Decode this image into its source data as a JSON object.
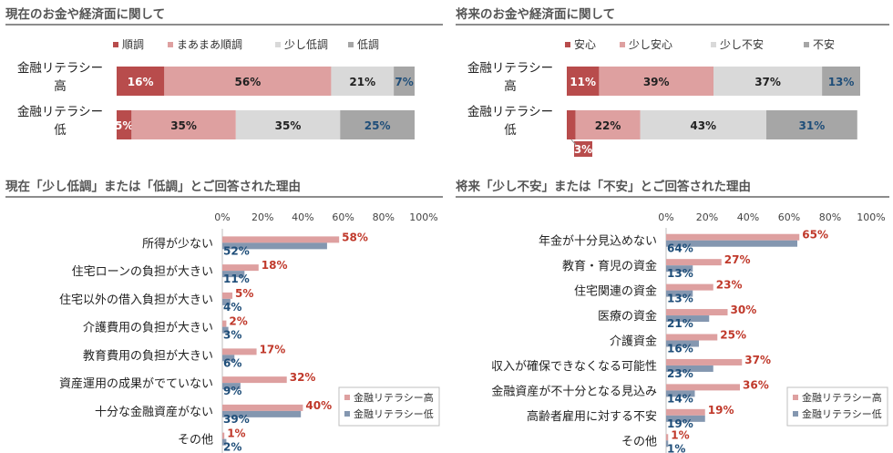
{
  "colors": {
    "dark_red": "#b84c4c",
    "pink": "#dea0a0",
    "light_gray": "#d9d9d9",
    "dark_gray": "#a6a6a6",
    "blue_gray": "#8497b0",
    "red_text": "#c0392b",
    "blue_text": "#1f4e79"
  },
  "chart_data": [
    {
      "type": "bar",
      "stacked": true,
      "orientation": "horizontal",
      "title": "現在のお金や経済面に関して",
      "categories": [
        "金融リテラシー高",
        "金融リテラシー低"
      ],
      "series": [
        {
          "name": "順調",
          "values": [
            16,
            5
          ]
        },
        {
          "name": "まあまあ順調",
          "values": [
            56,
            35
          ]
        },
        {
          "name": "少し低調",
          "values": [
            21,
            35
          ]
        },
        {
          "name": "低調",
          "values": [
            7,
            25
          ]
        }
      ],
      "legend": "top"
    },
    {
      "type": "bar",
      "stacked": true,
      "orientation": "horizontal",
      "title": "将来のお金や経済面に関して",
      "categories": [
        "金融リテラシー高",
        "金融リテラシー低"
      ],
      "series": [
        {
          "name": "安心",
          "values": [
            11,
            3
          ]
        },
        {
          "name": "少し安心",
          "values": [
            39,
            22
          ]
        },
        {
          "name": "少し不安",
          "values": [
            37,
            43
          ]
        },
        {
          "name": "不安",
          "values": [
            13,
            31
          ]
        }
      ],
      "legend": "top"
    },
    {
      "type": "bar",
      "orientation": "horizontal",
      "title": "現在「少し低調」または「低調」とご回答された理由",
      "categories": [
        "所得が少ない",
        "住宅ローンの負担が大きい",
        "住宅以外の借入負担が大きい",
        "介護費用の負担が大きい",
        "教育費用の負担が大きい",
        "資産運用の成果がでていない",
        "十分な金融資産がない",
        "その他"
      ],
      "series": [
        {
          "name": "金融リテラシー高",
          "values": [
            58,
            18,
            5,
            2,
            17,
            32,
            40,
            1
          ]
        },
        {
          "name": "金融リテラシー低",
          "values": [
            52,
            11,
            4,
            3,
            6,
            9,
            39,
            2
          ]
        }
      ],
      "xticks": [
        "0%",
        "20%",
        "40%",
        "60%",
        "80%",
        "100%"
      ],
      "xlim": [
        0,
        100
      ],
      "legend": "bottom-right"
    },
    {
      "type": "bar",
      "orientation": "horizontal",
      "title": "将来「少し不安」または「不安」とご回答された理由",
      "categories": [
        "年金が十分見込めない",
        "教育・育児の資金",
        "住宅関連の資金",
        "医療の資金",
        "介護資金",
        "収入が確保できなくなる可能性",
        "金融資産が不十分となる見込み",
        "高齢者雇用に対する不安",
        "その他"
      ],
      "series": [
        {
          "name": "金融リテラシー高",
          "values": [
            65,
            27,
            23,
            30,
            25,
            37,
            36,
            19,
            1
          ]
        },
        {
          "name": "金融リテラシー低",
          "values": [
            64,
            13,
            13,
            21,
            16,
            23,
            14,
            19,
            1
          ]
        }
      ],
      "xticks": [
        "0%",
        "20%",
        "40%",
        "60%",
        "80%",
        "100%"
      ],
      "xlim": [
        0,
        100
      ],
      "legend": "bottom-right"
    }
  ]
}
